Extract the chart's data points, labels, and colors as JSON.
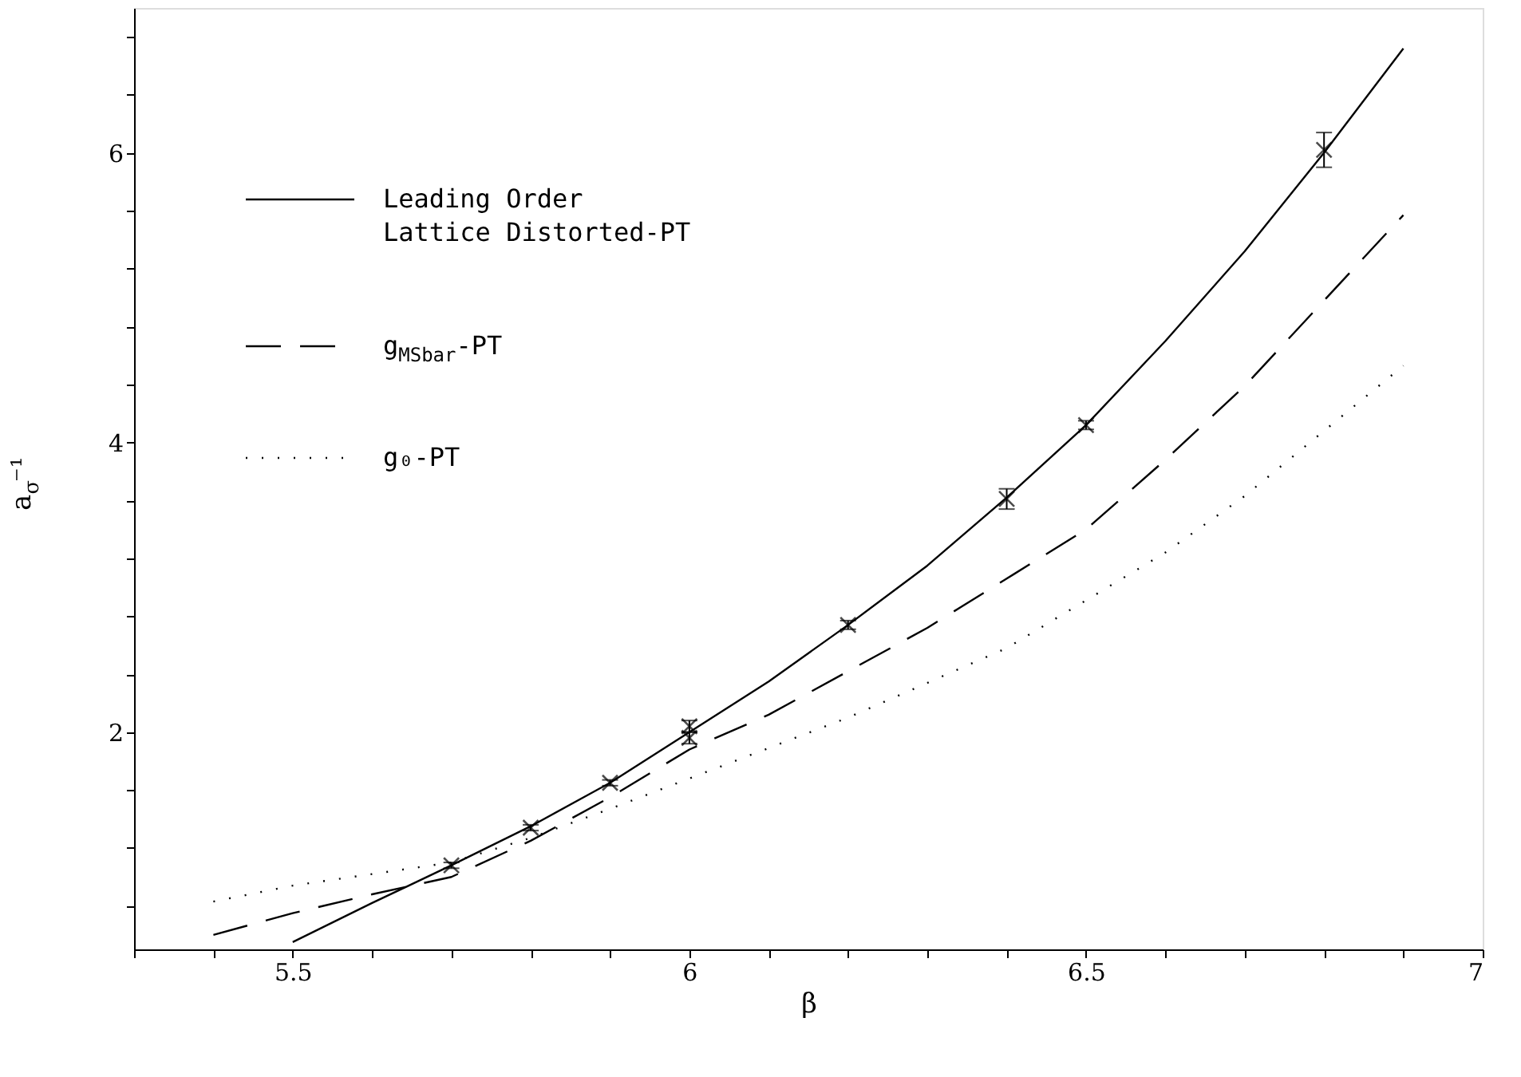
{
  "chart_data": {
    "type": "line",
    "xlabel": "β",
    "ylabel": "a$_{σ}$⁻¹",
    "xlim": [
      5.3,
      7.0
    ],
    "ylim": [
      0.5,
      7.0
    ],
    "xticks": [
      {
        "value": 5.3,
        "label": null
      },
      {
        "value": 5.4,
        "label": null
      },
      5.5,
      {
        "value": 5.6,
        "label": null
      },
      {
        "value": 5.7,
        "label": null
      },
      {
        "value": 5.8,
        "label": null
      },
      {
        "value": 5.9,
        "label": null
      },
      6,
      {
        "value": 6.1,
        "label": null
      },
      {
        "value": 6.2,
        "label": null
      },
      {
        "value": 6.3,
        "label": null
      },
      {
        "value": 6.4,
        "label": null
      },
      6.5,
      {
        "value": 6.6,
        "label": null
      },
      {
        "value": 6.7,
        "label": null
      },
      {
        "value": 6.8,
        "label": null
      },
      {
        "value": 6.9,
        "label": null
      },
      7
    ],
    "yticks": [
      {
        "value": 0.8,
        "label": null
      },
      {
        "value": 1.2,
        "label": null
      },
      {
        "value": 1.6,
        "label": null
      },
      2,
      {
        "value": 2.4,
        "label": null
      },
      {
        "value": 2.8,
        "label": null
      },
      {
        "value": 3.2,
        "label": null
      },
      {
        "value": 3.6,
        "label": null
      },
      4,
      {
        "value": 4.4,
        "label": null
      },
      {
        "value": 4.8,
        "label": null
      },
      {
        "value": 5.2,
        "label": null
      },
      {
        "value": 5.6,
        "label": null
      },
      6,
      {
        "value": 6.4,
        "label": null
      },
      {
        "value": 6.8,
        "label": null
      }
    ],
    "grid": false,
    "legend": "top left",
    "series": [
      {
        "name": "Leading Order\nLattice Distorted-PT",
        "type": "line",
        "line_style": "solid",
        "color": "#000000",
        "x": [
          5.5,
          5.6,
          5.7,
          5.8,
          5.9,
          6.0,
          6.1,
          6.2,
          6.3,
          6.4,
          6.5,
          6.6,
          6.7,
          6.8,
          6.9
        ],
        "values": [
          0.55,
          0.82,
          1.08,
          1.35,
          1.65,
          2.0,
          2.35,
          2.74,
          3.15,
          3.62,
          4.12,
          4.7,
          5.32,
          6.0,
          6.72
        ]
      },
      {
        "name": "g$_{MSbar}$-PT",
        "type": "line",
        "line_style": "dashed",
        "color": "#000000",
        "x": [
          5.4,
          5.5,
          5.6,
          5.7,
          5.8,
          5.9,
          6.0,
          6.1,
          6.2,
          6.3,
          6.4,
          6.5,
          6.6,
          6.7,
          6.8,
          6.9
        ],
        "values": [
          0.6,
          0.75,
          0.88,
          1.0,
          1.25,
          1.55,
          1.88,
          2.12,
          2.42,
          2.72,
          3.06,
          3.4,
          3.88,
          4.39,
          4.98,
          5.57
        ]
      },
      {
        "name": "g₀-PT",
        "type": "line",
        "line_style": "dotted",
        "color": "#000000",
        "x": [
          5.4,
          5.5,
          5.6,
          5.7,
          5.8,
          5.9,
          6.0,
          6.2,
          6.4,
          6.6,
          6.7,
          6.8,
          6.9
        ],
        "values": [
          0.83,
          0.94,
          1.02,
          1.1,
          1.27,
          1.47,
          1.68,
          2.1,
          2.58,
          3.24,
          3.63,
          4.08,
          4.53
        ]
      },
      {
        "type": "scatter",
        "marker": "cross",
        "color": "#000000",
        "x": [
          5.7,
          5.8,
          5.9,
          6.0,
          6.0,
          6.2,
          6.4,
          6.5,
          6.8
        ],
        "values": [
          1.08,
          1.34,
          1.65,
          2.04,
          1.96,
          2.74,
          3.61,
          4.12,
          6.02
        ],
        "errors": [
          0.02,
          0.02,
          0.02,
          0.04,
          0.04,
          0.03,
          0.07,
          0.03,
          0.12
        ]
      }
    ]
  }
}
